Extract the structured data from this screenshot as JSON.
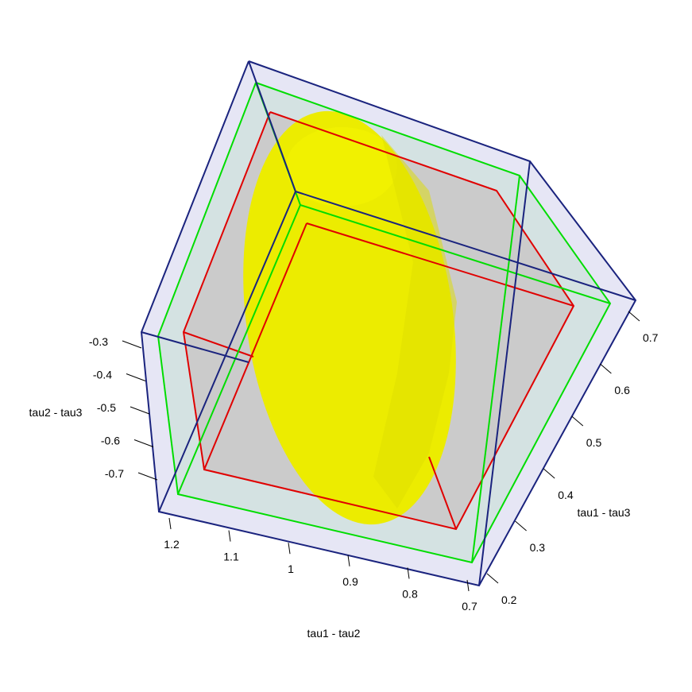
{
  "chart_data": {
    "type": "scatter",
    "subtype": "3d-confidence-region",
    "title": "",
    "axes": {
      "x": {
        "label": "tau1 - tau2",
        "ticks": [
          "1.2",
          "1.1",
          "1",
          "0.9",
          "0.8",
          "0.7"
        ],
        "range": [
          0.65,
          1.25
        ]
      },
      "y": {
        "label": "tau1 - tau3",
        "ticks": [
          "0.2",
          "0.3",
          "0.4",
          "0.5",
          "0.6",
          "0.7"
        ],
        "range": [
          0.15,
          0.75
        ]
      },
      "z": {
        "label": "tau2 - tau3",
        "ticks": [
          "-0.3",
          "-0.4",
          "-0.5",
          "-0.6",
          "-0.7"
        ],
        "range": [
          -0.75,
          -0.25
        ]
      }
    },
    "boxes": [
      {
        "role": "outer bounding box",
        "color": "#1a237e"
      },
      {
        "role": "middle box",
        "color": "#00dd00"
      },
      {
        "role": "inner box",
        "color": "#e00000"
      }
    ],
    "ellipsoid": {
      "color": "#eeee00"
    }
  },
  "colors": {
    "outer_face": "#e6e6f5",
    "middle_face": "#d4e2e2",
    "inner_face": "#cbcbcb"
  }
}
